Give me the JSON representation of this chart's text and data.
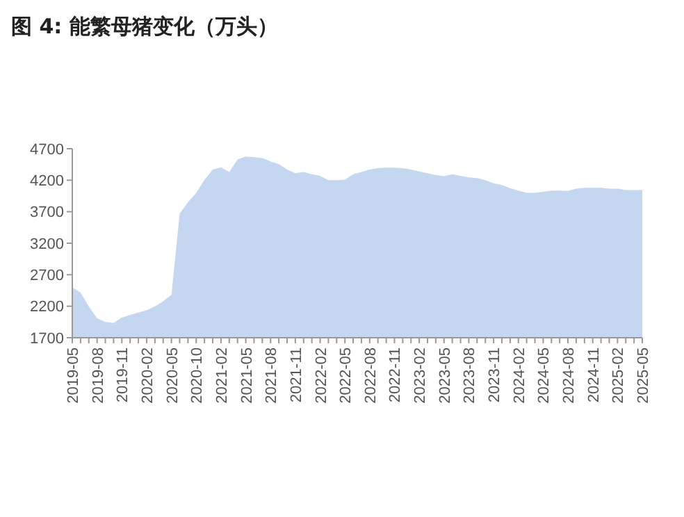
{
  "chart_data": {
    "type": "area",
    "title": "图 4:  能繁母猪变化（万头）",
    "categories": [
      "2019-05",
      null,
      null,
      "2019-08",
      null,
      null,
      "2019-11",
      null,
      null,
      "2020-02",
      null,
      null,
      "2020-05",
      null,
      null,
      "2020-10",
      null,
      null,
      "2021-02",
      null,
      null,
      "2021-05",
      null,
      null,
      "2021-08",
      null,
      null,
      "2021-11",
      null,
      null,
      "2022-02",
      null,
      null,
      "2022-05",
      null,
      null,
      "2022-08",
      null,
      null,
      "2022-11",
      null,
      null,
      "2023-02",
      null,
      null,
      "2023-05",
      null,
      null,
      "2023-08",
      null,
      null,
      "2023-11",
      null,
      null,
      "2024-02",
      null,
      null,
      "2024-05",
      null,
      null,
      "2024-08",
      null,
      null,
      "2024-11",
      null,
      null,
      "2025-02",
      null,
      null,
      "2025-05"
    ],
    "values": [
      2500,
      2415,
      2195,
      2010,
      1950,
      1935,
      2020,
      2060,
      2100,
      2135,
      2195,
      2280,
      2380,
      3670,
      3850,
      4000,
      4205,
      4370,
      4405,
      4330,
      4530,
      4575,
      4565,
      4550,
      4500,
      4455,
      4370,
      4310,
      4330,
      4295,
      4270,
      4200,
      4200,
      4210,
      4295,
      4330,
      4370,
      4390,
      4400,
      4400,
      4390,
      4370,
      4340,
      4310,
      4280,
      4265,
      4295,
      4270,
      4245,
      4235,
      4200,
      4150,
      4125,
      4075,
      4035,
      4000,
      4000,
      4015,
      4035,
      4035,
      4030,
      4065,
      4080,
      4080,
      4080,
      4065,
      4065,
      4045,
      4045,
      4045
    ],
    "color": "#c5d7f0",
    "ylim": [
      1700,
      4700
    ],
    "yticks": [
      1700,
      2200,
      2700,
      3200,
      3700,
      4200,
      4700
    ],
    "grid": false
  }
}
